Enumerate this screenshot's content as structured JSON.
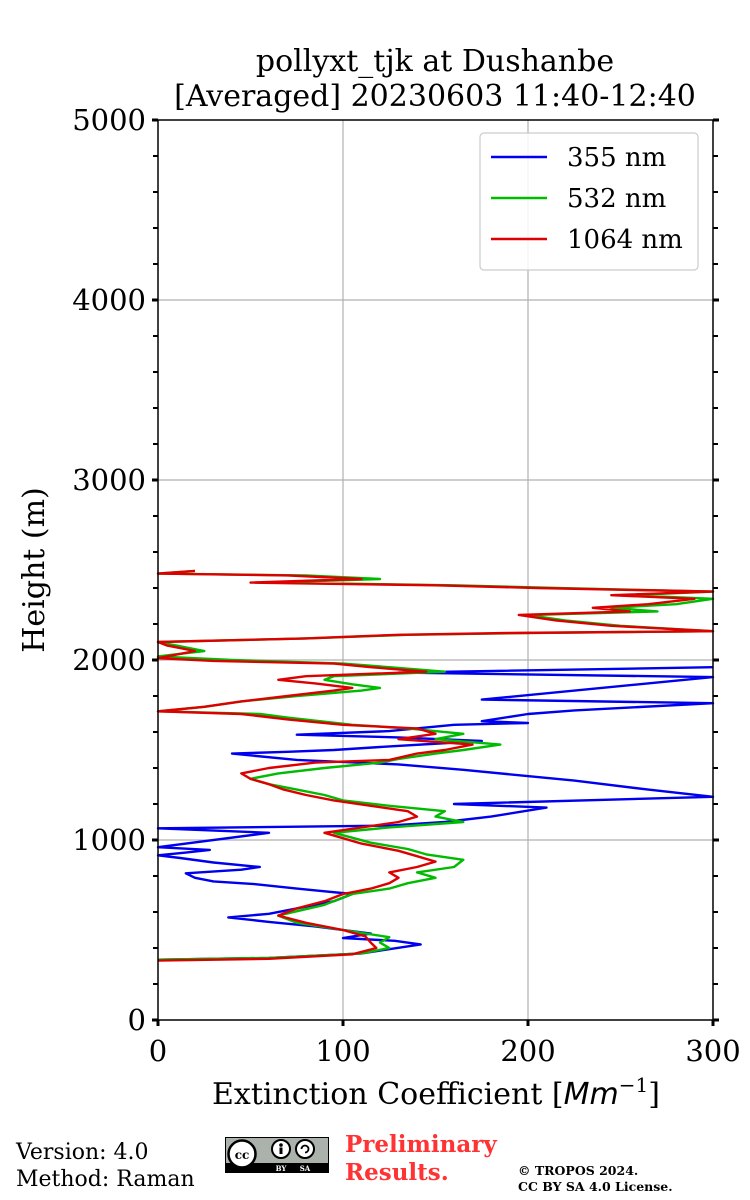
{
  "chart_data": {
    "type": "line",
    "title": [
      "pollyxt_tjk at Dushanbe",
      "[Averaged] 20230603 11:40-12:40"
    ],
    "xlabel": "Extinction Coefficient [",
    "xlabel_unit": "Mm",
    "xlabel_unit_exp": "−1",
    "ylabel": "Height (m)",
    "xlim": [
      0,
      300
    ],
    "ylim": [
      0,
      5000
    ],
    "xticks": [
      0,
      100,
      200,
      300
    ],
    "yticks": [
      0,
      1000,
      2000,
      3000,
      4000,
      5000
    ],
    "grid": true,
    "legend_position": "upper-right",
    "series": [
      {
        "name": "355 nm",
        "color": "#0000ee",
        "points": [
          [
            0,
            335
          ],
          [
            60,
            345
          ],
          [
            110,
            370
          ],
          [
            142,
            420
          ],
          [
            128,
            440
          ],
          [
            100,
            455
          ],
          [
            115,
            480
          ],
          [
            85,
            520
          ],
          [
            60,
            545
          ],
          [
            38,
            570
          ],
          [
            60,
            590
          ],
          [
            75,
            620
          ],
          [
            95,
            660
          ],
          [
            105,
            700
          ],
          [
            75,
            730
          ],
          [
            52,
            755
          ],
          [
            30,
            770
          ],
          [
            20,
            790
          ],
          [
            15,
            815
          ],
          [
            45,
            835
          ],
          [
            55,
            850
          ],
          [
            30,
            875
          ],
          [
            12,
            900
          ],
          [
            0,
            915
          ],
          [
            15,
            930
          ],
          [
            28,
            945
          ],
          [
            0,
            960
          ],
          [
            60,
            1040
          ],
          [
            0,
            1065
          ],
          [
            125,
            1080
          ],
          [
            155,
            1100
          ],
          [
            180,
            1130
          ],
          [
            210,
            1180
          ],
          [
            160,
            1200
          ],
          [
            300,
            1240
          ],
          [
            265,
            1280
          ],
          [
            225,
            1330
          ],
          [
            165,
            1390
          ],
          [
            130,
            1420
          ],
          [
            75,
            1445
          ],
          [
            40,
            1480
          ],
          [
            70,
            1490
          ],
          [
            95,
            1500
          ],
          [
            125,
            1520
          ],
          [
            175,
            1550
          ],
          [
            130,
            1570
          ],
          [
            75,
            1585
          ],
          [
            125,
            1605
          ],
          [
            160,
            1640
          ],
          [
            200,
            1650
          ],
          [
            175,
            1660
          ],
          [
            200,
            1700
          ],
          [
            225,
            1720
          ],
          [
            300,
            1760
          ],
          [
            175,
            1780
          ],
          [
            300,
            1905
          ],
          [
            130,
            1930
          ],
          [
            300,
            1960
          ]
        ]
      },
      {
        "name": "532 nm",
        "color": "#00bb00",
        "points": [
          [
            0,
            335
          ],
          [
            60,
            345
          ],
          [
            110,
            370
          ],
          [
            125,
            400
          ],
          [
            120,
            430
          ],
          [
            125,
            460
          ],
          [
            100,
            500
          ],
          [
            75,
            540
          ],
          [
            65,
            580
          ],
          [
            90,
            640
          ],
          [
            105,
            700
          ],
          [
            125,
            730
          ],
          [
            135,
            760
          ],
          [
            150,
            790
          ],
          [
            140,
            820
          ],
          [
            160,
            850
          ],
          [
            165,
            890
          ],
          [
            145,
            920
          ],
          [
            135,
            950
          ],
          [
            115,
            985
          ],
          [
            95,
            1040
          ],
          [
            125,
            1070
          ],
          [
            165,
            1100
          ],
          [
            150,
            1130
          ],
          [
            155,
            1160
          ],
          [
            125,
            1190
          ],
          [
            100,
            1220
          ],
          [
            90,
            1250
          ],
          [
            75,
            1280
          ],
          [
            60,
            1310
          ],
          [
            50,
            1340
          ],
          [
            65,
            1370
          ],
          [
            90,
            1400
          ],
          [
            120,
            1430
          ],
          [
            130,
            1450
          ],
          [
            150,
            1480
          ],
          [
            165,
            1500
          ],
          [
            185,
            1530
          ],
          [
            150,
            1560
          ],
          [
            165,
            1590
          ],
          [
            135,
            1620
          ],
          [
            105,
            1640
          ],
          [
            70,
            1680
          ],
          [
            55,
            1700
          ],
          [
            0,
            1715
          ],
          [
            25,
            1740
          ],
          [
            45,
            1770
          ],
          [
            75,
            1800
          ],
          [
            110,
            1830
          ],
          [
            120,
            1845
          ],
          [
            105,
            1865
          ],
          [
            90,
            1890
          ],
          [
            95,
            1910
          ],
          [
            155,
            1935
          ],
          [
            125,
            1960
          ],
          [
            100,
            1980
          ],
          [
            40,
            2000
          ],
          [
            0,
            2020
          ],
          [
            25,
            2050
          ],
          [
            10,
            2080
          ],
          [
            0,
            2100
          ],
          [
            80,
            2120
          ],
          [
            135,
            2140
          ],
          [
            200,
            2150
          ],
          [
            300,
            2160
          ],
          [
            250,
            2190
          ],
          [
            220,
            2220
          ],
          [
            200,
            2250
          ],
          [
            270,
            2270
          ],
          [
            245,
            2290
          ],
          [
            280,
            2310
          ],
          [
            300,
            2340
          ],
          [
            255,
            2360
          ],
          [
            300,
            2380
          ],
          [
            215,
            2400
          ],
          [
            160,
            2415
          ],
          [
            60,
            2430
          ],
          [
            120,
            2450
          ],
          [
            80,
            2470
          ],
          [
            0,
            2480
          ],
          [
            20,
            2495
          ]
        ]
      },
      {
        "name": "1064 nm",
        "color": "#dd0000",
        "points": [
          [
            0,
            330
          ],
          [
            60,
            340
          ],
          [
            105,
            365
          ],
          [
            118,
            400
          ],
          [
            115,
            430
          ],
          [
            112,
            465
          ],
          [
            100,
            500
          ],
          [
            80,
            540
          ],
          [
            65,
            580
          ],
          [
            75,
            620
          ],
          [
            90,
            660
          ],
          [
            100,
            700
          ],
          [
            115,
            730
          ],
          [
            125,
            760
          ],
          [
            130,
            790
          ],
          [
            125,
            820
          ],
          [
            140,
            850
          ],
          [
            150,
            880
          ],
          [
            140,
            910
          ],
          [
            130,
            940
          ],
          [
            110,
            980
          ],
          [
            90,
            1040
          ],
          [
            110,
            1070
          ],
          [
            130,
            1100
          ],
          [
            140,
            1130
          ],
          [
            135,
            1160
          ],
          [
            115,
            1190
          ],
          [
            95,
            1220
          ],
          [
            80,
            1250
          ],
          [
            68,
            1280
          ],
          [
            60,
            1310
          ],
          [
            50,
            1340
          ],
          [
            45,
            1370
          ],
          [
            60,
            1400
          ],
          [
            85,
            1430
          ],
          [
            125,
            1445
          ],
          [
            140,
            1480
          ],
          [
            155,
            1500
          ],
          [
            170,
            1530
          ],
          [
            130,
            1560
          ],
          [
            150,
            1590
          ],
          [
            140,
            1620
          ],
          [
            100,
            1640
          ],
          [
            70,
            1670
          ],
          [
            45,
            1700
          ],
          [
            0,
            1715
          ],
          [
            25,
            1740
          ],
          [
            45,
            1770
          ],
          [
            70,
            1800
          ],
          [
            95,
            1830
          ],
          [
            105,
            1845
          ],
          [
            85,
            1870
          ],
          [
            65,
            1890
          ],
          [
            80,
            1910
          ],
          [
            145,
            1935
          ],
          [
            115,
            1960
          ],
          [
            95,
            1980
          ],
          [
            30,
            1995
          ],
          [
            0,
            2010
          ],
          [
            20,
            2050
          ],
          [
            5,
            2080
          ],
          [
            0,
            2100
          ],
          [
            80,
            2120
          ],
          [
            130,
            2140
          ],
          [
            190,
            2150
          ],
          [
            300,
            2160
          ],
          [
            245,
            2190
          ],
          [
            215,
            2220
          ],
          [
            195,
            2250
          ],
          [
            255,
            2270
          ],
          [
            235,
            2290
          ],
          [
            265,
            2310
          ],
          [
            290,
            2340
          ],
          [
            245,
            2360
          ],
          [
            300,
            2380
          ],
          [
            205,
            2400
          ],
          [
            150,
            2415
          ],
          [
            50,
            2430
          ],
          [
            110,
            2450
          ],
          [
            70,
            2470
          ],
          [
            0,
            2480
          ],
          [
            20,
            2495
          ]
        ]
      }
    ]
  },
  "footer": {
    "version": "Version: 4.0",
    "method": "Method: Raman",
    "license_badge": "cc-by-sa-icon",
    "preliminary": [
      "Preliminary",
      "Results."
    ],
    "copyright": [
      "© TROPOS 2024.",
      "CC BY SA 4.0 License."
    ]
  }
}
